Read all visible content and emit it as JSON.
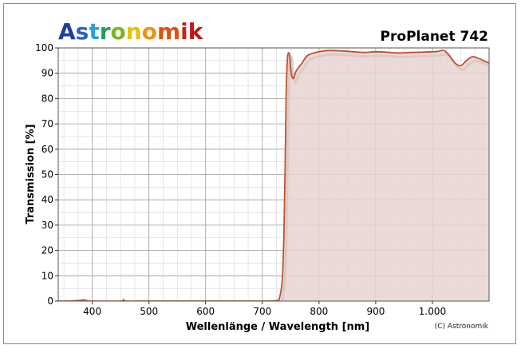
{
  "brand": {
    "letters": [
      "A",
      "s",
      "t",
      "r",
      "o",
      "n",
      "o",
      "m",
      "i",
      "k"
    ],
    "letter_colors": [
      "#1f3fa0",
      "#2a60c8",
      "#2aa0d8",
      "#20a050",
      "#7ab820",
      "#e8c000",
      "#f09010",
      "#e05010",
      "#d02010",
      "#c01818"
    ]
  },
  "chart_data": {
    "type": "line",
    "title": "ProPlanet 742",
    "xlabel": "Wellenlänge / Wavelength [nm]",
    "ylabel": "Transmission [%]",
    "xlim": [
      340,
      1100
    ],
    "ylim": [
      0,
      100
    ],
    "x_ticks": [
      400,
      500,
      600,
      700,
      800,
      900,
      1000
    ],
    "x_tick_labels": [
      "400",
      "500",
      "600",
      "700",
      "800",
      "900",
      "1.000"
    ],
    "y_ticks": [
      0,
      10,
      20,
      30,
      40,
      50,
      60,
      70,
      80,
      90,
      100
    ],
    "y_tick_labels": [
      "0",
      "10",
      "20",
      "30",
      "40",
      "50",
      "60",
      "70",
      "80",
      "90",
      "100"
    ],
    "grid": true,
    "fill_under_curve": true,
    "credit": "(C) Astronomik",
    "colors": {
      "line": "#c0502a",
      "fill": "#e8d4d0",
      "shadow": "#d8c8c8",
      "grid": "#b0b0b0"
    },
    "series": [
      {
        "x": [
          340,
          360,
          380,
          385,
          390,
          400,
          450,
          455,
          460,
          500,
          600,
          700,
          725,
          730,
          735,
          738,
          740,
          742,
          744,
          746,
          748,
          750,
          752,
          755,
          760,
          770,
          780,
          800,
          820,
          840,
          860,
          880,
          900,
          920,
          940,
          960,
          980,
          1000,
          1010,
          1020,
          1030,
          1040,
          1050,
          1060,
          1070,
          1080,
          1090,
          1100
        ],
        "y": [
          0,
          0,
          0.3,
          0.5,
          0.2,
          0,
          0,
          0.6,
          0,
          0,
          0,
          0,
          0.2,
          1,
          8,
          25,
          50,
          80,
          95,
          98,
          97,
          92,
          89,
          88,
          91,
          94,
          97,
          98.5,
          99,
          98.8,
          98.5,
          98.2,
          98.5,
          98.3,
          98,
          98.2,
          98.3,
          98.5,
          98.6,
          99,
          97,
          94,
          93,
          95,
          96.5,
          96,
          95,
          94
        ]
      }
    ]
  }
}
